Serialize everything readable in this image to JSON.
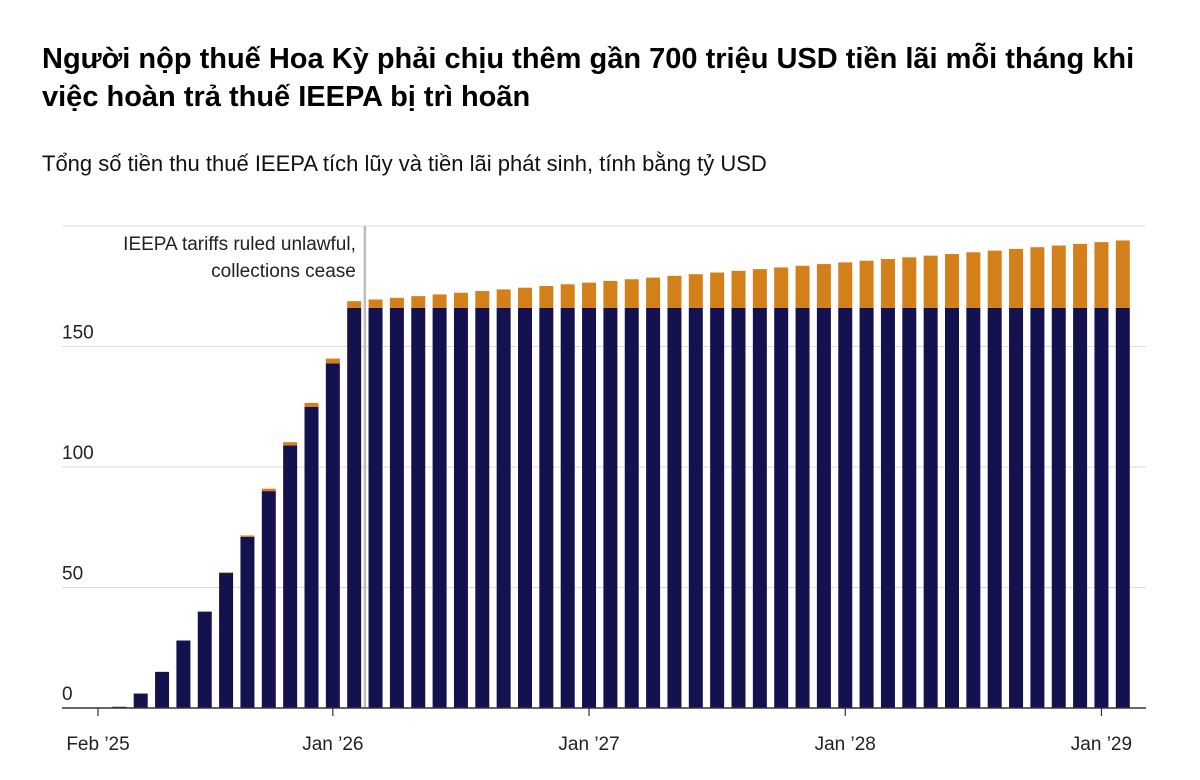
{
  "title": "Người nộp thuế Hoa Kỳ phải chịu thêm gần 700 triệu USD tiền lãi mỗi tháng khi việc hoàn trả thuế IEEPA bị trì hoãn",
  "subtitle": "Tổng số tiền thu thuế IEEPA tích lũy và tiền lãi phát sinh, tính bằng tỷ USD",
  "colors": {
    "collections": "#13124f",
    "interest": "#d4801a",
    "grid": "#dcdcdc",
    "axis": "#333333",
    "marker": "#bdbdbd"
  },
  "chart_data": {
    "type": "bar",
    "stacked": true,
    "x": [
      "Feb 2025",
      "Mar 2025",
      "Apr 2025",
      "May 2025",
      "Jun 2025",
      "Jul 2025",
      "Aug 2025",
      "Sep 2025",
      "Oct 2025",
      "Nov 2025",
      "Dec 2025",
      "Jan 2026",
      "Feb 2026",
      "Mar 2026",
      "Apr 2026",
      "May 2026",
      "Jun 2026",
      "Jul 2026",
      "Aug 2026",
      "Sep 2026",
      "Oct 2026",
      "Nov 2026",
      "Dec 2026",
      "Jan 2027",
      "Feb 2027",
      "Mar 2027",
      "Apr 2027",
      "May 2027",
      "Jun 2027",
      "Jul 2027",
      "Aug 2027",
      "Sep 2027",
      "Oct 2027",
      "Nov 2027",
      "Dec 2027",
      "Jan 2028",
      "Feb 2028",
      "Mar 2028",
      "Apr 2028",
      "May 2028",
      "Jun 2028",
      "Jul 2028",
      "Aug 2028",
      "Sep 2028",
      "Oct 2028",
      "Nov 2028",
      "Dec 2028",
      "Jan 2029",
      "Feb 2029"
    ],
    "series": [
      {
        "values": [
          0,
          0.5,
          6,
          15,
          28,
          40,
          56,
          71,
          90,
          109,
          125,
          143,
          166,
          166,
          166,
          166,
          166,
          166,
          166,
          166,
          166,
          166,
          166,
          166,
          166,
          166,
          166,
          166,
          166,
          166,
          166,
          166,
          166,
          166,
          166,
          166,
          166,
          166,
          166,
          166,
          166,
          166,
          166,
          166,
          166,
          166,
          166,
          166,
          166
        ]
      },
      {
        "values": [
          0,
          0,
          0,
          0,
          0,
          0,
          0.3,
          0.6,
          1,
          1.3,
          1.6,
          2,
          2.8,
          3.5,
          4.2,
          4.9,
          5.6,
          6.3,
          7,
          7.7,
          8.4,
          9.1,
          9.8,
          10.5,
          11.2,
          11.9,
          12.6,
          13.3,
          14,
          14.7,
          15.4,
          16.1,
          16.8,
          17.5,
          18.2,
          18.9,
          19.6,
          20.3,
          21,
          21.7,
          22.4,
          23.1,
          23.8,
          24.5,
          25.2,
          25.9,
          26.6,
          27.3,
          28
        ]
      }
    ],
    "x_ticks": [
      {
        "index": 1,
        "label": "Feb ’25"
      },
      {
        "index": 12,
        "label": "Jan ’26"
      },
      {
        "index": 24,
        "label": "Jan ’27"
      },
      {
        "index": 36,
        "label": "Jan ’28"
      },
      {
        "index": 48,
        "label": "Jan ’29"
      }
    ],
    "y_ticks": [
      0,
      50,
      100,
      150
    ],
    "ylim": [
      0,
      200
    ],
    "annotation": {
      "at_index": 13,
      "lines": [
        "IEEPA tariffs ruled unlawful,",
        "collections cease"
      ]
    },
    "grid": true
  }
}
